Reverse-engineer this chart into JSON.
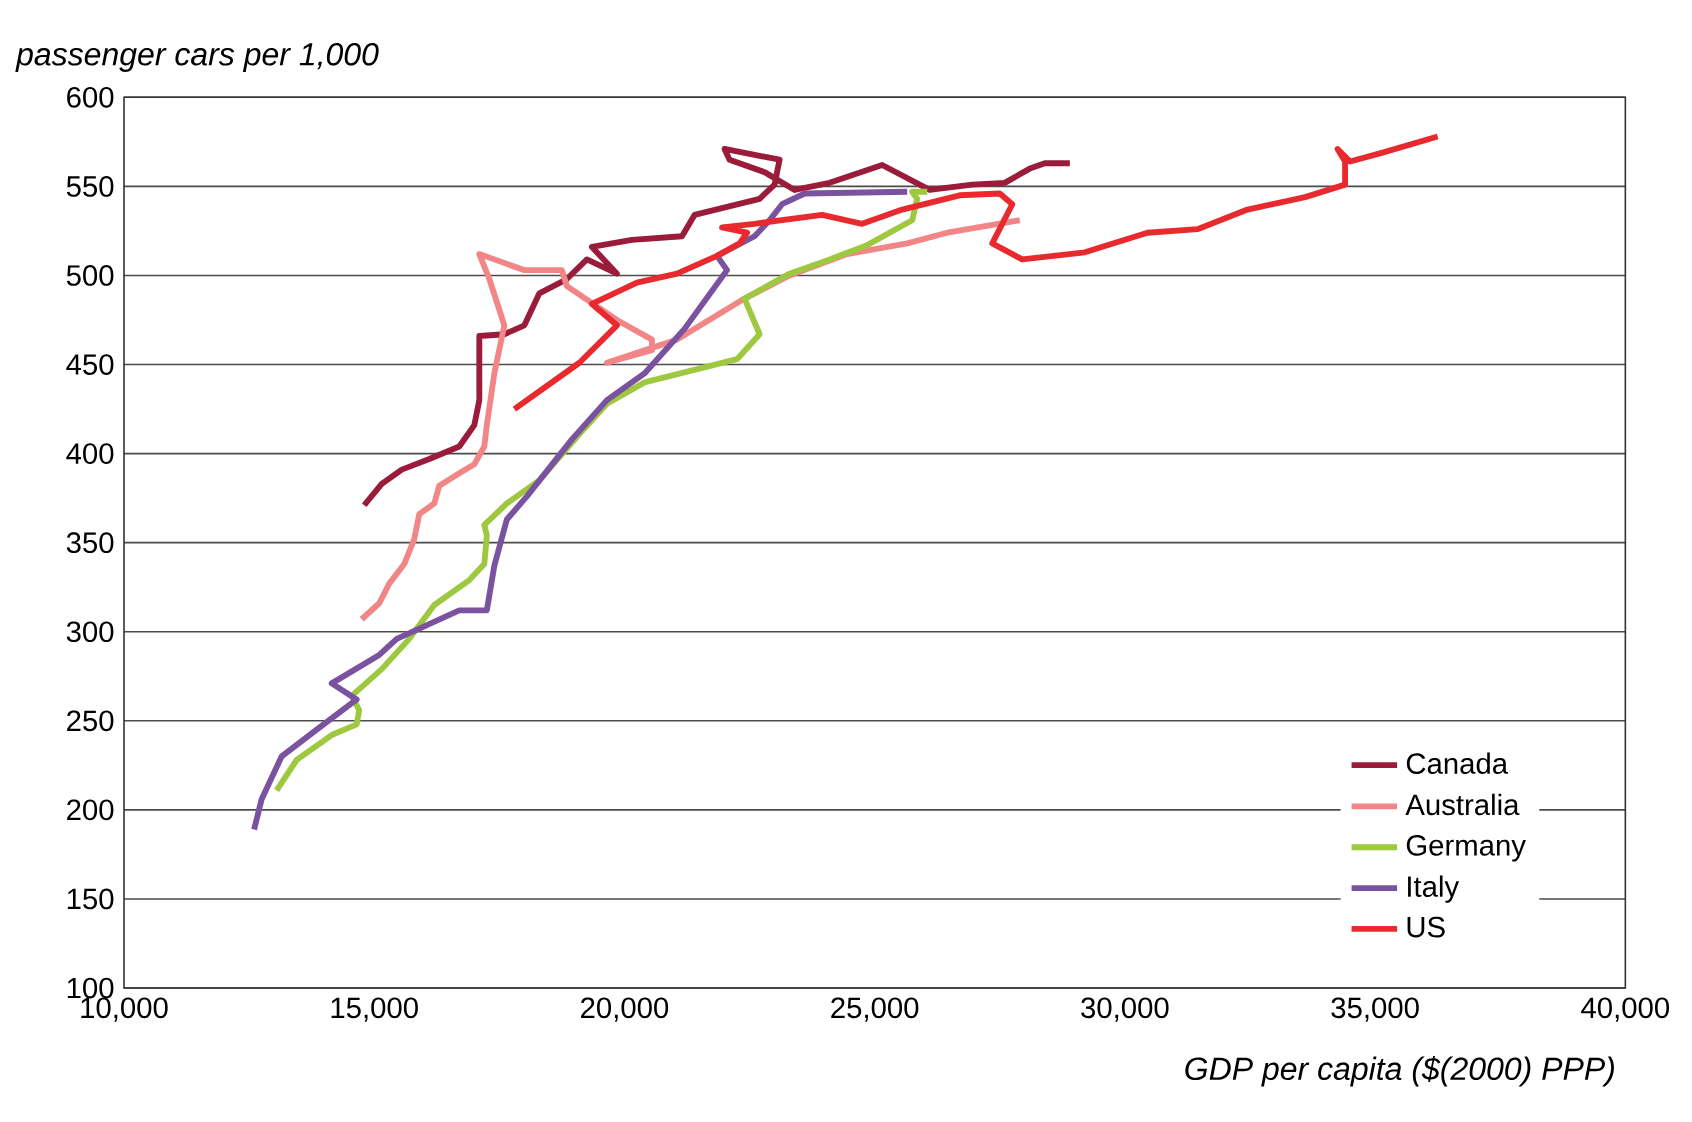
{
  "chart_data": {
    "type": "line",
    "xlabel": "GDP per capita ($(2000) PPP)",
    "ylabel": "passenger cars per 1,000",
    "xlim": [
      10000,
      40000
    ],
    "xticks": [
      {
        "value": 10000,
        "label": "10,000"
      },
      {
        "value": 15000,
        "label": "15,000"
      },
      {
        "value": 20000,
        "label": "20,000"
      },
      {
        "value": 25000,
        "label": "25,000"
      },
      {
        "value": 30000,
        "label": "30,000"
      },
      {
        "value": 35000,
        "label": "35,000"
      },
      {
        "value": 40000,
        "label": "40,000"
      }
    ],
    "ylim": [
      100,
      600
    ],
    "yticks": [
      100,
      150,
      200,
      250,
      300,
      350,
      400,
      450,
      500,
      550,
      600
    ],
    "grid": "y",
    "legend": "bottom right",
    "series": [
      {
        "name": "Canada",
        "color": "#9b1b3a",
        "x": [
          14800,
          15150,
          15550,
          16100,
          16700,
          17000,
          17100,
          17100,
          17600,
          18000,
          18300,
          18850,
          19250,
          19850,
          19350,
          20150,
          21150,
          21400,
          22700,
          23000,
          23100,
          22000,
          22100,
          22800,
          23400,
          24100,
          25150,
          26100,
          26950,
          27600,
          28100,
          28400,
          28900
        ],
        "values": [
          371,
          383,
          391,
          397,
          404,
          416,
          430,
          466,
          467,
          472,
          490,
          498,
          509,
          501,
          516,
          520,
          522,
          534,
          543,
          551,
          565,
          571,
          565,
          558,
          548,
          552,
          562,
          548,
          551,
          552,
          560,
          563,
          563
        ]
      },
      {
        "name": "Australia",
        "color": "#f28686",
        "x": [
          14750,
          15100,
          15300,
          15600,
          15800,
          15900,
          16200,
          16300,
          16700,
          17000,
          17200,
          17250,
          17400,
          17600,
          17300,
          17100,
          18000,
          18750,
          18850,
          19850,
          20550,
          20550,
          19650,
          21050,
          22400,
          23300,
          24450,
          25650,
          26450,
          27900
        ],
        "values": [
          307,
          316,
          327,
          338,
          352,
          366,
          372,
          382,
          389,
          394,
          404,
          416,
          445,
          472,
          498,
          512,
          503,
          503,
          494,
          475,
          464,
          458,
          451,
          464,
          487,
          500,
          512,
          518,
          524,
          531
        ]
      },
      {
        "name": "Germany",
        "color": "#9dc83f",
        "x": [
          13050,
          13450,
          14150,
          14650,
          14700,
          14550,
          15150,
          15700,
          16200,
          16900,
          17200,
          17250,
          17200,
          17650,
          18300,
          19100,
          19650,
          20400,
          22250,
          22700,
          22400,
          23300,
          24100,
          24850,
          25750,
          25850,
          25750,
          26050
        ],
        "values": [
          211,
          228,
          242,
          248,
          256,
          264,
          279,
          296,
          315,
          329,
          338,
          354,
          360,
          372,
          385,
          411,
          428,
          440,
          453,
          467,
          487,
          501,
          509,
          517,
          531,
          543,
          547,
          547
        ]
      },
      {
        "name": "Italy",
        "color": "#7b52a0",
        "x": [
          12600,
          12750,
          13150,
          13850,
          14650,
          14150,
          15100,
          15450,
          16700,
          17250,
          17400,
          17650,
          18050,
          18950,
          19650,
          20400,
          21200,
          22050,
          21850,
          22600,
          22900,
          23150,
          23600,
          25650
        ],
        "values": [
          189,
          206,
          230,
          245,
          262,
          271,
          287,
          296,
          312,
          312,
          337,
          363,
          376,
          408,
          430,
          445,
          470,
          503,
          511,
          522,
          531,
          540,
          546,
          547
        ]
      },
      {
        "name": "US",
        "color": "#e8292d",
        "x": [
          17800,
          19100,
          19850,
          19350,
          20250,
          21050,
          21850,
          22300,
          22450,
          21950,
          22600,
          23950,
          24750,
          25550,
          26700,
          27500,
          27750,
          27350,
          27950,
          29200,
          30450,
          31450,
          32450,
          33600,
          34400,
          34400,
          34250,
          34500,
          35150,
          36250
        ],
        "values": [
          425,
          451,
          472,
          484,
          496,
          501,
          511,
          518,
          524,
          527,
          529,
          534,
          529,
          537,
          545,
          546,
          540,
          518,
          509,
          513,
          524,
          526,
          537,
          544,
          551,
          564,
          571,
          564,
          569,
          578
        ]
      }
    ]
  }
}
